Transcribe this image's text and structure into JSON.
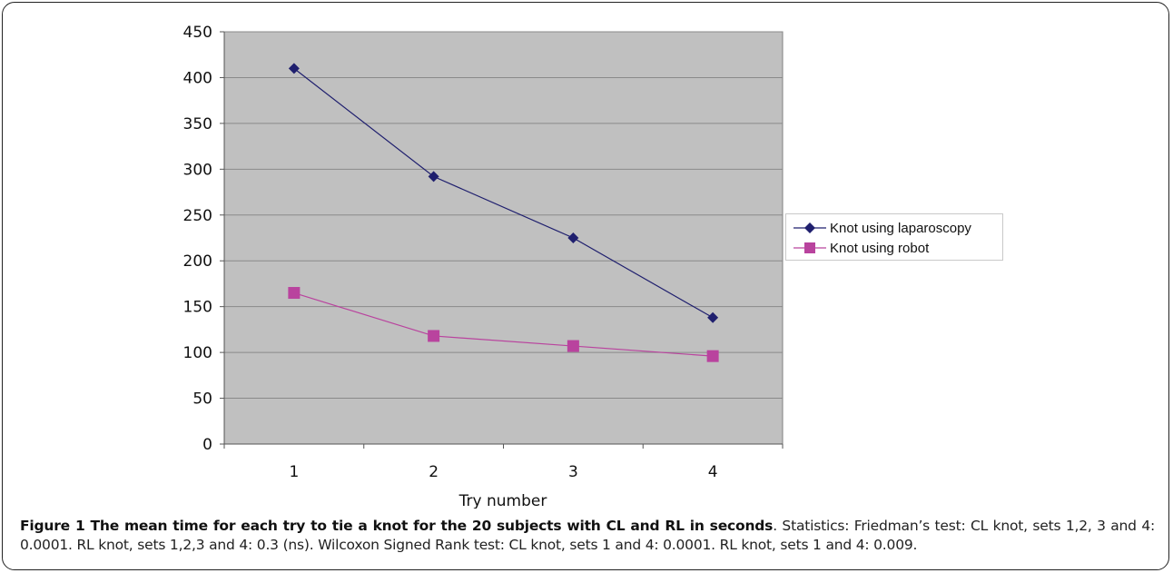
{
  "chart_data": {
    "type": "line",
    "categories": [
      "1",
      "2",
      "3",
      "4"
    ],
    "xlabel": "Try number",
    "ylabel": "",
    "ylim": [
      0,
      450
    ],
    "yticks": [
      "0",
      "50",
      "100",
      "150",
      "200",
      "250",
      "300",
      "350",
      "400",
      "450"
    ],
    "grid": "horizontal",
    "legend_position": "right",
    "plot_background": "#c0c0c0",
    "series": [
      {
        "name": "Knot using laparoscopy",
        "values": [
          410,
          292,
          225,
          138
        ],
        "color": "#1f1f6e",
        "marker": "diamond"
      },
      {
        "name": "Knot using robot",
        "values": [
          165,
          118,
          107,
          96
        ],
        "color": "#b9439e",
        "marker": "square"
      }
    ]
  },
  "caption": {
    "bold": "Figure 1 The mean time for each try to tie a knot for the 20 subjects with CL and RL in seconds",
    "rest": ". Statistics: Friedman’s test: CL knot, sets 1,2, 3 and 4: 0.0001. RL knot, sets 1,2,3 and 4: 0.3 (ns). Wilcoxon Signed Rank test: CL knot, sets 1 and 4: 0.0001. RL knot, sets 1 and 4: 0.009."
  }
}
